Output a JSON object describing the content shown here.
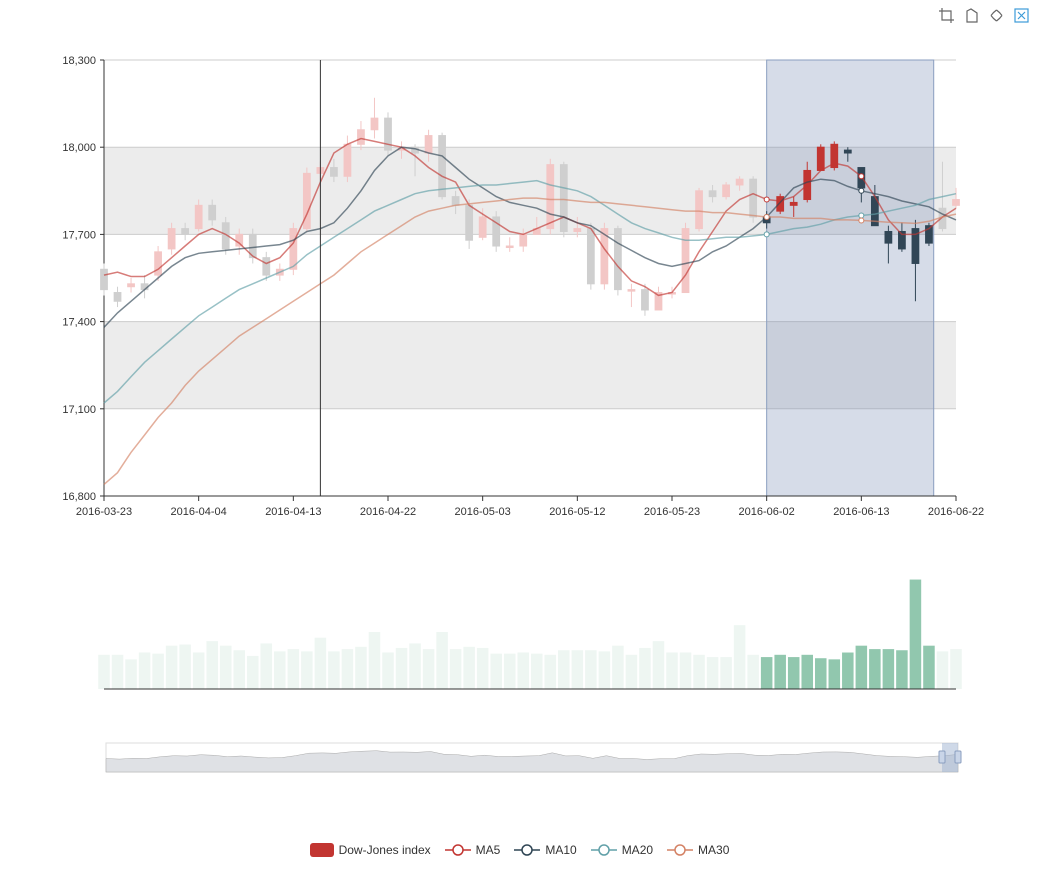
{
  "colors": {
    "up": "#c23531",
    "down": "#314656",
    "ma5": "#c23531",
    "ma10": "#2f4554",
    "ma20": "#61a0a8",
    "ma30": "#d48265",
    "volume": "#91c7ae",
    "brush": "#8a9ebf"
  },
  "toolbar": [
    {
      "name": "brush-rect-icon",
      "title": "rect"
    },
    {
      "name": "brush-polygon-icon",
      "title": "polygon"
    },
    {
      "name": "brush-keep-icon",
      "title": "keep"
    },
    {
      "name": "brush-clear-icon",
      "title": "clear"
    }
  ],
  "legend": [
    {
      "label": "Dow-Jones index",
      "color": "#c23531",
      "kind": "bar"
    },
    {
      "label": "MA5",
      "color": "#c23531",
      "kind": "line"
    },
    {
      "label": "MA10",
      "color": "#2f4554",
      "kind": "line"
    },
    {
      "label": "MA20",
      "color": "#61a0a8",
      "kind": "line"
    },
    {
      "label": "MA30",
      "color": "#d48265",
      "kind": "line"
    }
  ],
  "chart_data": {
    "type": "candlestick",
    "ylim": [
      16800,
      18300
    ],
    "yticks": [
      16800,
      17100,
      17400,
      17700,
      18000,
      18300
    ],
    "ytick_labels": [
      "16,800",
      "17,100",
      "17,400",
      "17,700",
      "18,000",
      "18,300"
    ],
    "xtick_labels": [
      "2016-03-23",
      "2016-04-04",
      "2016-04-13",
      "2016-04-22",
      "2016-05-03",
      "2016-05-12",
      "2016-05-23",
      "2016-06-02",
      "2016-06-13",
      "2016-06-22"
    ],
    "xtick_indices": [
      0,
      7,
      14,
      21,
      28,
      35,
      42,
      49,
      56,
      63
    ],
    "n": 64,
    "brush_range": [
      49,
      61
    ],
    "crosshair_index": 16,
    "candles": [
      [
        17580,
        17510,
        17600,
        17490
      ],
      [
        17500,
        17470,
        17520,
        17450
      ],
      [
        17520,
        17530,
        17550,
        17500
      ],
      [
        17530,
        17510,
        17560,
        17480
      ],
      [
        17560,
        17640,
        17660,
        17540
      ],
      [
        17650,
        17720,
        17740,
        17630
      ],
      [
        17720,
        17700,
        17740,
        17680
      ],
      [
        17720,
        17800,
        17820,
        17710
      ],
      [
        17800,
        17750,
        17820,
        17730
      ],
      [
        17740,
        17650,
        17760,
        17630
      ],
      [
        17660,
        17700,
        17720,
        17630
      ],
      [
        17700,
        17620,
        17720,
        17600
      ],
      [
        17620,
        17560,
        17640,
        17540
      ],
      [
        17560,
        17580,
        17600,
        17540
      ],
      [
        17580,
        17720,
        17740,
        17560
      ],
      [
        17720,
        17910,
        17930,
        17710
      ],
      [
        17910,
        17930,
        17950,
        17880
      ],
      [
        17930,
        17900,
        17960,
        17880
      ],
      [
        17900,
        18010,
        18040,
        17880
      ],
      [
        18010,
        18060,
        18090,
        17990
      ],
      [
        18060,
        18100,
        18170,
        18030
      ],
      [
        18100,
        17990,
        18120,
        17970
      ],
      [
        17990,
        18000,
        18020,
        17960
      ],
      [
        18000,
        17980,
        18010,
        17900
      ],
      [
        17980,
        18040,
        18060,
        17950
      ],
      [
        18040,
        17830,
        18050,
        17820
      ],
      [
        17830,
        17800,
        17850,
        17770
      ],
      [
        17800,
        17680,
        17820,
        17650
      ],
      [
        17690,
        17760,
        17790,
        17680
      ],
      [
        17760,
        17660,
        17780,
        17640
      ],
      [
        17660,
        17660,
        17690,
        17640
      ],
      [
        17660,
        17700,
        17720,
        17640
      ],
      [
        17700,
        17720,
        17760,
        17700
      ],
      [
        17720,
        17940,
        17960,
        17700
      ],
      [
        17940,
        17710,
        17950,
        17690
      ],
      [
        17710,
        17720,
        17760,
        17690
      ],
      [
        17720,
        17530,
        17740,
        17510
      ],
      [
        17530,
        17720,
        17740,
        17510
      ],
      [
        17720,
        17510,
        17730,
        17490
      ],
      [
        17510,
        17510,
        17530,
        17450
      ],
      [
        17510,
        17440,
        17530,
        17420
      ],
      [
        17440,
        17500,
        17520,
        17440
      ],
      [
        17500,
        17500,
        17520,
        17480
      ],
      [
        17500,
        17720,
        17740,
        17500
      ],
      [
        17720,
        17850,
        17860,
        17710
      ],
      [
        17850,
        17830,
        17870,
        17810
      ],
      [
        17830,
        17870,
        17880,
        17820
      ],
      [
        17870,
        17890,
        17900,
        17850
      ],
      [
        17890,
        17760,
        17900,
        17740
      ],
      [
        17760,
        17740,
        17780,
        17720
      ],
      [
        17780,
        17830,
        17840,
        17770
      ],
      [
        17800,
        17810,
        17830,
        17760
      ],
      [
        17820,
        17920,
        17950,
        17810
      ],
      [
        17920,
        18000,
        18010,
        17920
      ],
      [
        17930,
        18010,
        18020,
        17920
      ],
      [
        17990,
        17980,
        18000,
        17950
      ],
      [
        17930,
        17860,
        17930,
        17810
      ],
      [
        17830,
        17730,
        17870,
        17730
      ],
      [
        17710,
        17670,
        17730,
        17600
      ],
      [
        17710,
        17650,
        17740,
        17640
      ],
      [
        17720,
        17600,
        17750,
        17470
      ],
      [
        17730,
        17670,
        17740,
        17660
      ],
      [
        17790,
        17720,
        17950,
        17710
      ],
      [
        17800,
        17820,
        17860,
        17790
      ]
    ],
    "volumes": [
      0.3,
      0.3,
      0.26,
      0.32,
      0.31,
      0.38,
      0.39,
      0.32,
      0.42,
      0.38,
      0.34,
      0.29,
      0.4,
      0.33,
      0.35,
      0.33,
      0.45,
      0.33,
      0.35,
      0.37,
      0.5,
      0.32,
      0.36,
      0.4,
      0.35,
      0.5,
      0.35,
      0.37,
      0.36,
      0.31,
      0.31,
      0.32,
      0.31,
      0.3,
      0.34,
      0.34,
      0.34,
      0.33,
      0.38,
      0.3,
      0.36,
      0.42,
      0.32,
      0.32,
      0.3,
      0.28,
      0.28,
      0.56,
      0.3,
      0.28,
      0.3,
      0.28,
      0.3,
      0.27,
      0.26,
      0.32,
      0.38,
      0.35,
      0.35,
      0.34,
      0.96,
      0.38,
      0.33,
      0.35
    ],
    "ma5": [
      17560,
      17570,
      17555,
      17555,
      17580,
      17620,
      17660,
      17700,
      17720,
      17700,
      17670,
      17625,
      17600,
      17620,
      17670,
      17770,
      17880,
      17980,
      18010,
      18030,
      18020,
      18010,
      18000,
      17970,
      17930,
      17900,
      17880,
      17800,
      17770,
      17740,
      17710,
      17700,
      17720,
      17740,
      17760,
      17740,
      17720,
      17650,
      17590,
      17540,
      17520,
      17490,
      17500,
      17560,
      17640,
      17710,
      17780,
      17820,
      17840,
      17820,
      17815,
      17830,
      17870,
      17920,
      17945,
      17935,
      17900,
      17830,
      17750,
      17700,
      17700,
      17720,
      17760,
      17790
    ],
    "ma10": [
      17380,
      17430,
      17470,
      17510,
      17550,
      17590,
      17620,
      17635,
      17640,
      17645,
      17650,
      17655,
      17660,
      17665,
      17680,
      17710,
      17720,
      17740,
      17790,
      17850,
      17920,
      17970,
      18000,
      17995,
      17980,
      17970,
      17930,
      17890,
      17860,
      17830,
      17810,
      17800,
      17790,
      17770,
      17760,
      17740,
      17730,
      17700,
      17670,
      17645,
      17620,
      17600,
      17590,
      17600,
      17610,
      17640,
      17660,
      17690,
      17720,
      17760,
      17810,
      17860,
      17880,
      17890,
      17885,
      17865,
      17850,
      17840,
      17830,
      17815,
      17805,
      17795,
      17770,
      17750
    ],
    "ma20": [
      17120,
      17160,
      17210,
      17260,
      17300,
      17340,
      17380,
      17420,
      17450,
      17480,
      17510,
      17530,
      17550,
      17570,
      17590,
      17630,
      17660,
      17690,
      17720,
      17750,
      17780,
      17800,
      17820,
      17840,
      17850,
      17855,
      17860,
      17865,
      17870,
      17870,
      17875,
      17880,
      17885,
      17870,
      17860,
      17850,
      17830,
      17800,
      17770,
      17740,
      17720,
      17705,
      17690,
      17680,
      17680,
      17685,
      17690,
      17690,
      17695,
      17700,
      17710,
      17720,
      17725,
      17735,
      17750,
      17760,
      17765,
      17770,
      17780,
      17790,
      17800,
      17820,
      17830,
      17840
    ],
    "ma30": [
      16840,
      16880,
      16950,
      17010,
      17070,
      17120,
      17180,
      17230,
      17270,
      17310,
      17350,
      17380,
      17410,
      17440,
      17470,
      17500,
      17530,
      17560,
      17600,
      17640,
      17670,
      17700,
      17730,
      17760,
      17780,
      17790,
      17800,
      17805,
      17810,
      17815,
      17820,
      17825,
      17825,
      17820,
      17820,
      17815,
      17810,
      17810,
      17805,
      17800,
      17795,
      17790,
      17785,
      17780,
      17780,
      17775,
      17775,
      17770,
      17765,
      17760,
      17760,
      17755,
      17755,
      17755,
      17750,
      17750,
      17748,
      17745,
      17742,
      17740,
      17738,
      17745,
      17760,
      17770
    ]
  }
}
